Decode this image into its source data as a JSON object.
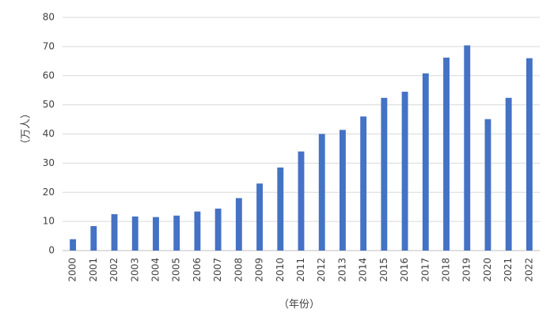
{
  "chart_data": {
    "type": "bar",
    "title": "",
    "xlabel": "（年份）",
    "ylabel": "（万人）",
    "ylim": [
      0,
      80
    ],
    "yticks": [
      0,
      10,
      20,
      30,
      40,
      50,
      60,
      70,
      80
    ],
    "grid": true,
    "legend": "none",
    "categories": [
      "2000",
      "2001",
      "2002",
      "2003",
      "2004",
      "2005",
      "2006",
      "2007",
      "2008",
      "2009",
      "2010",
      "2011",
      "2012",
      "2013",
      "2014",
      "2015",
      "2016",
      "2017",
      "2018",
      "2019",
      "2020",
      "2021",
      "2022"
    ],
    "series": [
      {
        "values": [
          3.9,
          8.4,
          12.5,
          11.7,
          11.5,
          12.0,
          13.4,
          14.4,
          18.0,
          23.0,
          28.5,
          34.0,
          40.0,
          41.4,
          46.0,
          52.4,
          54.5,
          60.8,
          66.2,
          70.4,
          45.1,
          52.4,
          66.0
        ],
        "color": "#4472c4"
      }
    ]
  }
}
